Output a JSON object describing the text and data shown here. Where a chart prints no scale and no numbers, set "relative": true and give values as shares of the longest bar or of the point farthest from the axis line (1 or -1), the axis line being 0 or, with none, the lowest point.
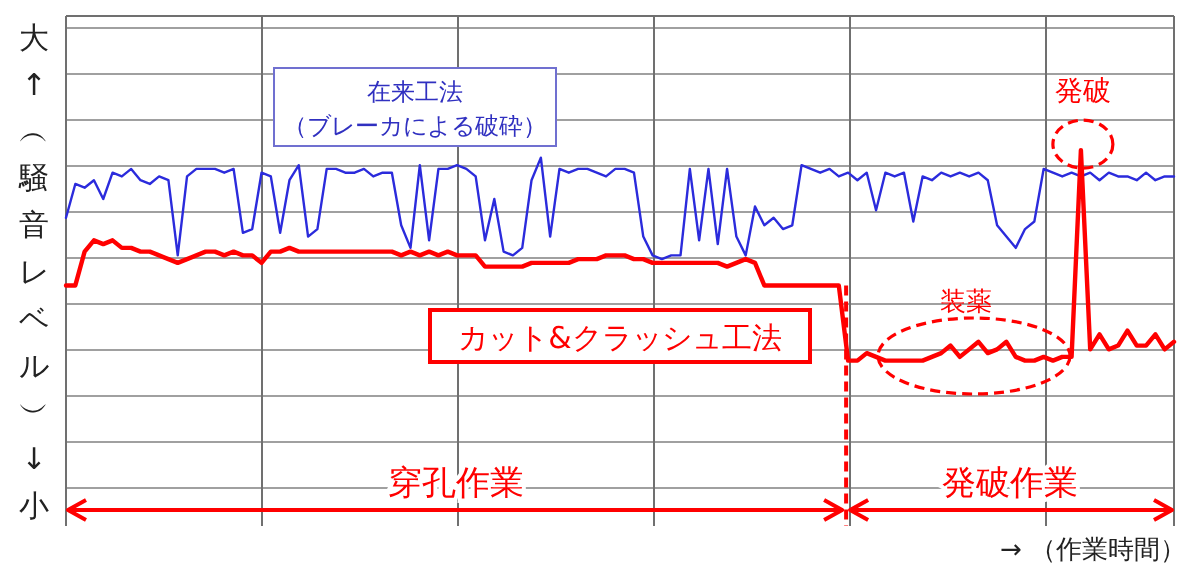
{
  "chart_data": {
    "type": "line",
    "relative": true,
    "grid": true,
    "ylabel": "大↑︵騒音レベル︶↓小",
    "xlabel": "→ （作業時間）",
    "annotations": [
      "発破",
      "装薬",
      "穿孔作業",
      "発破作業"
    ],
    "categories": [
      null,
      null,
      null,
      null,
      null,
      null,
      null,
      null,
      null,
      null,
      null,
      null,
      null,
      null,
      null,
      null,
      null,
      null,
      null,
      null,
      null,
      null,
      null,
      null,
      null,
      null,
      null,
      null,
      null,
      null,
      null,
      null,
      null,
      null,
      null,
      null,
      null,
      null,
      null,
      null,
      null,
      null,
      null,
      null,
      null,
      null,
      null,
      null,
      null,
      null,
      null,
      null,
      null,
      null,
      null,
      null,
      null,
      null,
      null,
      null,
      null,
      null,
      null,
      null,
      null,
      null,
      null,
      null,
      null,
      null,
      null,
      null,
      null,
      null,
      null,
      null,
      null,
      null,
      null,
      null,
      null,
      null,
      null,
      null,
      null,
      null,
      null,
      null,
      null,
      null,
      null,
      null,
      null,
      null,
      null,
      null,
      null,
      null,
      null,
      null,
      null,
      null,
      null,
      null,
      null,
      null,
      null,
      null,
      null,
      null,
      null,
      null,
      null,
      null,
      null,
      null,
      null,
      null,
      null,
      null
    ],
    "series": [
      {
        "name": "在来工法（ブレーカによる破砕）",
        "color": "#2b2bdc",
        "values": [
          0.82,
          0.91,
          0.9,
          0.92,
          0.87,
          0.94,
          0.93,
          0.95,
          0.92,
          0.91,
          0.93,
          0.92,
          0.72,
          0.93,
          0.95,
          0.95,
          0.95,
          0.94,
          0.95,
          0.78,
          0.79,
          0.94,
          0.93,
          0.78,
          0.92,
          0.96,
          0.77,
          0.79,
          0.95,
          0.95,
          0.94,
          0.94,
          0.95,
          0.93,
          0.94,
          0.94,
          0.8,
          0.74,
          0.96,
          0.76,
          0.95,
          0.95,
          0.96,
          0.95,
          0.93,
          0.76,
          0.87,
          0.73,
          0.72,
          0.74,
          0.92,
          0.98,
          0.77,
          0.95,
          0.94,
          0.95,
          0.95,
          0.94,
          0.93,
          0.95,
          0.95,
          0.94,
          0.77,
          0.72,
          0.71,
          0.72,
          0.72,
          0.95,
          0.76,
          0.95,
          0.75,
          0.95,
          0.77,
          0.72,
          0.85,
          0.8,
          0.82,
          0.79,
          0.8,
          0.96,
          0.95,
          0.94,
          0.95,
          0.93,
          0.94,
          0.92,
          0.94,
          0.84,
          0.94,
          0.93,
          0.94,
          0.81,
          0.93,
          0.92,
          0.94,
          0.93,
          0.94,
          0.93,
          0.94,
          0.92,
          0.8,
          0.77,
          0.74,
          0.79,
          0.81,
          0.95,
          0.94,
          0.93,
          0.94,
          0.93,
          0.94,
          0.92,
          0.94,
          0.93,
          0.93,
          0.92,
          0.94,
          0.92,
          0.93,
          0.93
        ]
      },
      {
        "name": "カット&クラッシュ工法",
        "color": "#ff0000",
        "values": [
          0.64,
          0.64,
          0.73,
          0.76,
          0.75,
          0.76,
          0.74,
          0.74,
          0.73,
          0.73,
          0.72,
          0.71,
          0.7,
          0.71,
          0.72,
          0.73,
          0.73,
          0.72,
          0.73,
          0.72,
          0.72,
          0.7,
          0.73,
          0.73,
          0.74,
          0.73,
          0.73,
          0.73,
          0.73,
          0.73,
          0.73,
          0.73,
          0.73,
          0.73,
          0.73,
          0.73,
          0.72,
          0.73,
          0.72,
          0.73,
          0.72,
          0.73,
          0.72,
          0.72,
          0.72,
          0.69,
          0.69,
          0.69,
          0.69,
          0.69,
          0.7,
          0.7,
          0.7,
          0.7,
          0.7,
          0.71,
          0.71,
          0.71,
          0.72,
          0.72,
          0.72,
          0.71,
          0.71,
          0.7,
          0.7,
          0.7,
          0.7,
          0.7,
          0.7,
          0.7,
          0.7,
          0.69,
          0.7,
          0.71,
          0.7,
          0.64,
          0.64,
          0.64,
          0.64,
          0.64,
          0.64,
          0.64,
          0.64,
          0.64,
          0.44,
          0.44,
          0.46,
          0.45,
          0.44,
          0.44,
          0.44,
          0.44,
          0.44,
          0.45,
          0.46,
          0.48,
          0.45,
          0.47,
          0.49,
          0.46,
          0.47,
          0.49,
          0.45,
          0.44,
          0.44,
          0.45,
          0.44,
          0.45,
          0.45,
          1.0,
          0.47,
          0.51,
          0.47,
          0.48,
          0.52,
          0.48,
          0.48,
          0.51,
          0.47,
          0.49
        ]
      }
    ]
  }
}
